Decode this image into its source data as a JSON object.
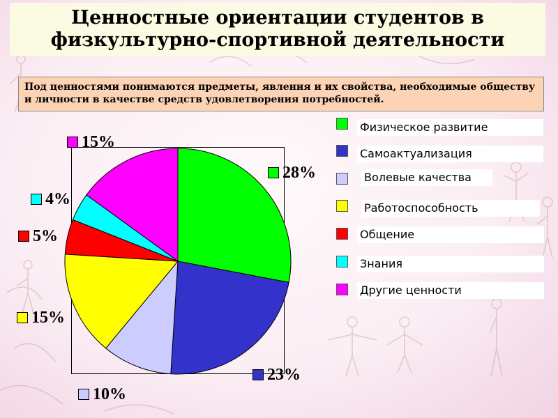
{
  "title_lines": [
    "Ценностные ориентации студентов в",
    "физкультурно-спортивной деятельности"
  ],
  "definition": "Под ценностями понимаются предметы, явления и их свойства, необходимые обществу и личности в качестве средств удовлетворения потребностей.",
  "chart_data": {
    "type": "pie",
    "categories": [
      "Физическое развитие",
      "Самоактуализация",
      "Волевые качества",
      "Работоспособность",
      "Общение",
      "Знания",
      "Другие ценности"
    ],
    "values": [
      28,
      23,
      10,
      15,
      5,
      4,
      15
    ],
    "value_labels": [
      "28%",
      "23%",
      "10%",
      "15%",
      "5%",
      "4%",
      "15%"
    ],
    "colors": [
      "#00ff00",
      "#3333cc",
      "#ccccff",
      "#ffff00",
      "#ff0000",
      "#00ffff",
      "#ff00ff"
    ],
    "start_angle_deg": 0,
    "direction": "clockwise",
    "legend_position": "right"
  }
}
